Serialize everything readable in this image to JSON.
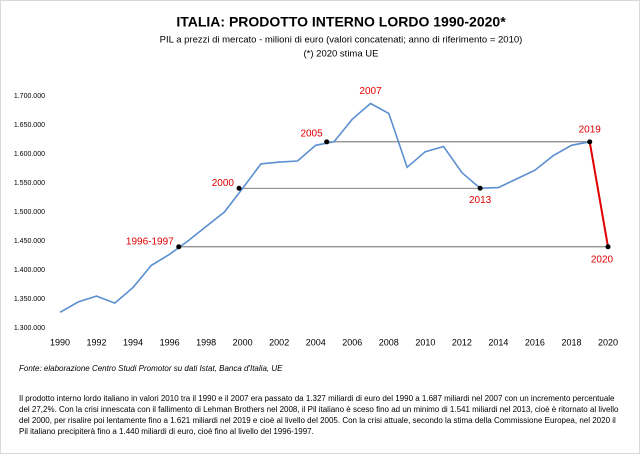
{
  "chart_data": {
    "type": "line",
    "title": "ITALIA: PRODOTTO INTERNO LORDO 1990-2020*",
    "subtitle": "PIL a prezzi di mercato - milioni di euro (valori concatenati; anno di riferimento = 2010)",
    "note": "(*) 2020 stima UE",
    "x": [
      1990,
      1991,
      1992,
      1993,
      1994,
      1995,
      1996,
      1997,
      1998,
      1999,
      2000,
      2001,
      2002,
      2003,
      2004,
      2005,
      2006,
      2007,
      2008,
      2009,
      2010,
      2011,
      2012,
      2013,
      2014,
      2015,
      2016,
      2017,
      2018,
      2019,
      2020
    ],
    "values": [
      1327000,
      1345000,
      1355000,
      1343000,
      1370000,
      1408000,
      1427000,
      1450000,
      1475000,
      1500000,
      1541000,
      1583000,
      1586000,
      1588000,
      1615000,
      1621000,
      1660000,
      1687000,
      1670000,
      1577000,
      1604000,
      1613000,
      1568000,
      1541000,
      1542000,
      1557000,
      1572000,
      1597000,
      1615000,
      1621000,
      1440000
    ],
    "color": "#5b8fd0",
    "last_segment_color": "#e00000",
    "xlim": [
      1990,
      2020
    ],
    "xticks": [
      1990,
      1992,
      1994,
      1996,
      1998,
      2000,
      2002,
      2004,
      2006,
      2008,
      2010,
      2012,
      2014,
      2016,
      2018,
      2020
    ],
    "ylim": [
      1300000,
      1700000
    ],
    "yticks": [
      {
        "value": 1300000,
        "label": "1.300.000"
      },
      {
        "value": 1350000,
        "label": "1.350.000"
      },
      {
        "value": 1400000,
        "label": "1.400.000"
      },
      {
        "value": 1450000,
        "label": "1.450.000"
      },
      {
        "value": 1500000,
        "label": "1.500.000"
      },
      {
        "value": 1550000,
        "label": "1.550.000"
      },
      {
        "value": 1600000,
        "label": "1.600.000"
      },
      {
        "value": 1650000,
        "label": "1.650.000"
      },
      {
        "value": 1700000,
        "label": "1.700.000"
      }
    ],
    "annotations": [
      {
        "label": "2007",
        "x": 2007,
        "y": 1687000,
        "dot": false
      },
      {
        "label": "2005",
        "x": 2004.6,
        "y": 1621000,
        "dot": true
      },
      {
        "label": "2019",
        "x": 2019,
        "y": 1621000,
        "dot": true
      },
      {
        "label": "2000",
        "x": 1999.8,
        "y": 1541000,
        "dot": true
      },
      {
        "label": "2013",
        "x": 2013,
        "y": 1541000,
        "dot": true
      },
      {
        "label": "1996-1997",
        "x": 1996.5,
        "y": 1440000,
        "dot": true
      },
      {
        "label": "2020",
        "x": 2020,
        "y": 1440000,
        "dot": true
      }
    ],
    "annotation_color": "#e00000",
    "reference_lines": [
      {
        "x1": 2004.6,
        "x2": 2019,
        "y": 1621000
      },
      {
        "x1": 1999.8,
        "x2": 2013,
        "y": 1541000
      },
      {
        "x1": 1996.5,
        "x2": 2020,
        "y": 1440000
      }
    ],
    "grid": false
  },
  "source": "Fonte: elaborazione Centro Studi Promotor su dati Istat, Banca d'Italia, UE",
  "description": "Il prodotto interno lordo italiano in valori 2010 tra il 1990 e il 2007 era passato da 1.327 miliardi di euro del 1990 a 1.687 miliardi nel 2007 con un incremento percentuale del 27,2%. Con la crisi innescata con il fallimento di Lehman Brothers nel 2008, il Pil italiano è sceso fino ad un minimo di 1.541 miliardi nel 2013, cioè è ritornato al livello del 2000, per risalire poi lentamente fino a 1.621 miliardi nel 2019 e cioè al livello del 2005. Con la crisi attuale, secondo la stima della Commissione Europea, nel 2020 il Pil italiano precipiterà fino a 1.440 miliardi di euro, cioè fino al livello del 1996-1997."
}
